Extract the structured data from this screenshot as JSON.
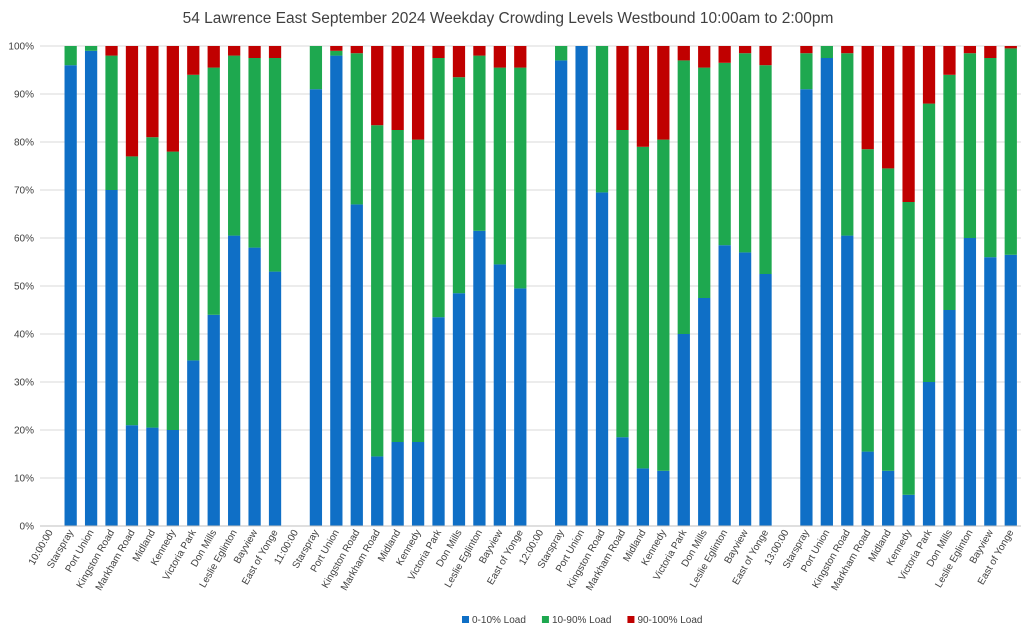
{
  "chart_data": {
    "type": "bar",
    "stacked": true,
    "title": "54 Lawrence East September 2024  Weekday Crowding Levels Westbound 10:00am to 2:00pm",
    "ylim": [
      0,
      100
    ],
    "y_ticks": [
      "0%",
      "10%",
      "20%",
      "30%",
      "40%",
      "50%",
      "60%",
      "70%",
      "80%",
      "90%",
      "100%"
    ],
    "grid": true,
    "legend_position": "bottom",
    "groups": [
      {
        "label": "10:00:00",
        "categories": [
          "Starspray",
          "Port Union",
          "Kingston Road",
          "Markham Road",
          "Midland",
          "Kennedy",
          "Victoria Park",
          "Don Mills",
          "Leslie Eglinton",
          "Bayview",
          "East of Yonge"
        ],
        "series": [
          {
            "name": "0-10% Load",
            "values": [
              96,
              99,
              70,
              21,
              20.5,
              20,
              34.5,
              44,
              60.5,
              58,
              53
            ]
          },
          {
            "name": "10-90% Load",
            "values": [
              4,
              1,
              28,
              56,
              60.5,
              58,
              59.5,
              51.5,
              37.5,
              39.5,
              44.5
            ]
          },
          {
            "name": "90-100% Load",
            "values": [
              0,
              0,
              2,
              23,
              19,
              22,
              6,
              4.5,
              2,
              2.5,
              2.5
            ]
          }
        ]
      },
      {
        "label": "11:00:00",
        "categories": [
          "Starspray",
          "Port Union",
          "Kingston Road",
          "Markham Road",
          "Midland",
          "Kennedy",
          "Victoria Park",
          "Don Mills",
          "Leslie Eglinton",
          "Bayview",
          "East of Yonge"
        ],
        "series": [
          {
            "name": "0-10% Load",
            "values": [
              91,
              98,
              67,
              14.5,
              17.5,
              17.5,
              43.5,
              48.5,
              61.5,
              54.5,
              49.5
            ]
          },
          {
            "name": "10-90% Load",
            "values": [
              9,
              1,
              31.5,
              69,
              65,
              63,
              54,
              45,
              36.5,
              41,
              46
            ]
          },
          {
            "name": "90-100% Load",
            "values": [
              0,
              1,
              1.5,
              16.5,
              17.5,
              19.5,
              2.5,
              6.5,
              2,
              4.5,
              4.5
            ]
          }
        ]
      },
      {
        "label": "12:00:00",
        "categories": [
          "Starspray",
          "Port Union",
          "Kingston Road",
          "Markham Road",
          "Midland",
          "Kennedy",
          "Victoria Park",
          "Don Mills",
          "Leslie Eglinton",
          "Bayview",
          "East of Yonge"
        ],
        "series": [
          {
            "name": "0-10% Load",
            "values": [
              97,
              100,
              69.5,
              18.5,
              12,
              11.5,
              40,
              47.5,
              58.5,
              57,
              52.5
            ]
          },
          {
            "name": "10-90% Load",
            "values": [
              3,
              0,
              30.5,
              64,
              67,
              69,
              57,
              48,
              38,
              41.5,
              43.5
            ]
          },
          {
            "name": "90-100% Load",
            "values": [
              0,
              0,
              0,
              17.5,
              21,
              19.5,
              3,
              4.5,
              3.5,
              1.5,
              4
            ]
          }
        ]
      },
      {
        "label": "13:00:00",
        "categories": [
          "Starspray",
          "Port Union",
          "Kingston Road",
          "Markham Road",
          "Midland",
          "Kennedy",
          "Victoria Park",
          "Don Mills",
          "Leslie Eglinton",
          "Bayview",
          "East of Yonge"
        ],
        "series": [
          {
            "name": "0-10% Load",
            "values": [
              91,
              97.5,
              60.5,
              15.5,
              11.5,
              6.5,
              30,
              45,
              60,
              56,
              56.5
            ]
          },
          {
            "name": "10-90% Load",
            "values": [
              7.5,
              2.5,
              38,
              63,
              63,
              61,
              58,
              49,
              38.5,
              41.5,
              43
            ]
          },
          {
            "name": "90-100% Load",
            "values": [
              1.5,
              0,
              1.5,
              21.5,
              25.5,
              32.5,
              12,
              6,
              1.5,
              2.5,
              0.5
            ]
          }
        ]
      }
    ],
    "legend": [
      {
        "name": "0-10% Load",
        "color": "#0F6FC6"
      },
      {
        "name": "10-90% Load",
        "color": "#1EA84F"
      },
      {
        "name": "90-100% Load",
        "color": "#C00000"
      }
    ],
    "colors": {
      "grid": "#d9d9d9",
      "axis": "#bfbfbf",
      "text": "#404040"
    }
  }
}
